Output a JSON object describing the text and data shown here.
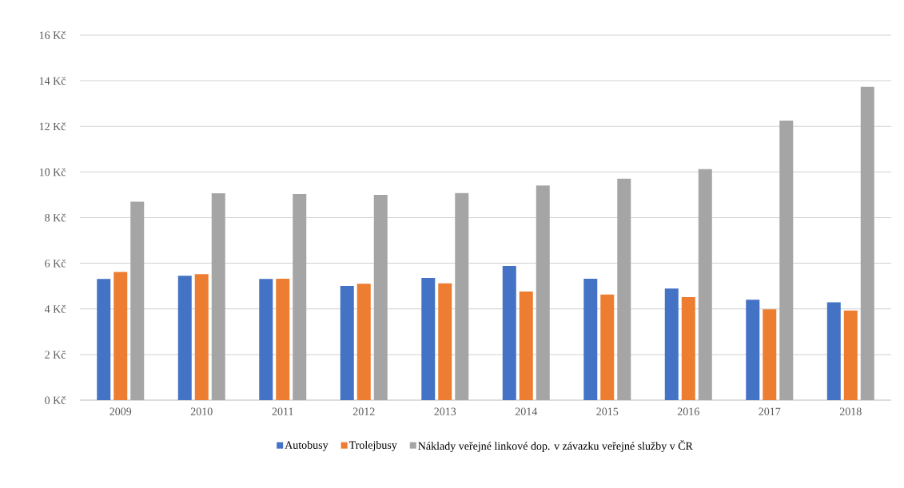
{
  "chart_data": {
    "type": "bar",
    "categories": [
      "2009",
      "2010",
      "2011",
      "2012",
      "2013",
      "2014",
      "2015",
      "2016",
      "2017",
      "2018"
    ],
    "series": [
      {
        "name": "Autobusy",
        "color": "#4472c4",
        "values": [
          5.31,
          5.45,
          5.31,
          5.01,
          5.36,
          5.88,
          5.32,
          4.89,
          4.4,
          4.29
        ]
      },
      {
        "name": "Trolejbusy",
        "color": "#ed7d31",
        "values": [
          5.62,
          5.52,
          5.32,
          5.1,
          5.12,
          4.76,
          4.63,
          4.52,
          3.98,
          3.93
        ]
      },
      {
        "name": "Náklady veřejné linkové dop. v závazku veřejné služby v ČR",
        "color": "#a5a5a5",
        "values": [
          8.7,
          9.07,
          9.03,
          9.0,
          9.08,
          9.41,
          9.71,
          10.13,
          12.25,
          13.73
        ]
      }
    ],
    "ylim": [
      0,
      16
    ],
    "yticks": [
      {
        "value": 0,
        "label": "0 Kč"
      },
      {
        "value": 2,
        "label": "2 Kč"
      },
      {
        "value": 4,
        "label": "4 Kč"
      },
      {
        "value": 6,
        "label": "6 Kč"
      },
      {
        "value": 8,
        "label": "8 Kč"
      },
      {
        "value": 10,
        "label": "10 Kč"
      },
      {
        "value": 12,
        "label": "12 Kč"
      },
      {
        "value": 14,
        "label": "14 Kč"
      },
      {
        "value": 16,
        "label": "16 Kč"
      }
    ],
    "grid": "y",
    "legend": "bottom"
  }
}
